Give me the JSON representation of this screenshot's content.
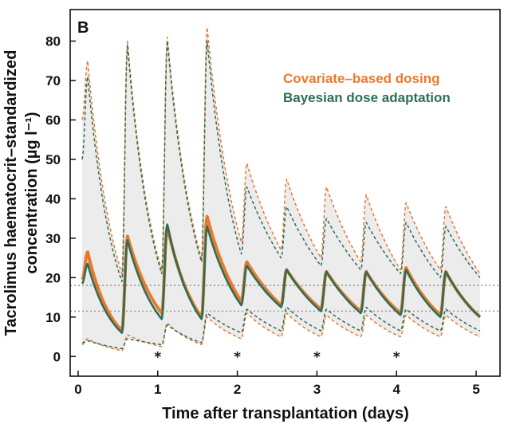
{
  "chart_data": {
    "type": "line",
    "panel_label": "B",
    "title": "",
    "xlabel": "Time after transplantation (days)",
    "ylabel_line1": "Tacrolimus haematocrit–standardized",
    "ylabel_line2": "concentration (µg l⁻¹)",
    "xlim": [
      -0.1,
      5.3
    ],
    "ylim": [
      -5,
      88
    ],
    "x_ticks": [
      0,
      1,
      2,
      3,
      4,
      5
    ],
    "x_tick_labels": [
      "0",
      "1",
      "2",
      "3",
      "4",
      "5"
    ],
    "y_ticks": [
      0,
      10,
      20,
      30,
      40,
      50,
      60,
      70,
      80
    ],
    "y_tick_labels": [
      "0",
      "10",
      "20",
      "30",
      "40",
      "50",
      "60",
      "70",
      "80"
    ],
    "grid": false,
    "legend": {
      "placement": "top-right",
      "entries": [
        {
          "label": "Covariate–based dosing",
          "color": "#e87a2d"
        },
        {
          "label": "Bayesian dose adaptation",
          "color": "#2d6e57"
        }
      ]
    },
    "reference_lines": [
      {
        "y": 18,
        "style": "dotted",
        "color": "#999999"
      },
      {
        "y": 11.5,
        "style": "dotted",
        "color": "#999999"
      }
    ],
    "markers": [
      {
        "x": 1,
        "y": 0,
        "label": "*"
      },
      {
        "x": 2,
        "y": 0,
        "label": "*"
      },
      {
        "x": 3,
        "y": 0,
        "label": "*"
      },
      {
        "x": 4,
        "y": 0,
        "label": "*"
      }
    ],
    "dosing_interval_days": 0.5,
    "series": [
      {
        "name": "Covariate–based dosing",
        "role": "median",
        "color": "#e87a2d",
        "style": "solid",
        "peaks": [
          26.5,
          30.5,
          33.0,
          35.5,
          24.0,
          22.0,
          21.5,
          21.5,
          22.5,
          21.5
        ],
        "troughs": [
          19.5,
          6.5,
          11.0,
          10.0,
          14.0,
          13.0,
          12.0,
          11.5,
          11.0,
          10.5,
          10.0
        ]
      },
      {
        "name": "Bayesian dose adaptation",
        "role": "median",
        "color": "#2d6e57",
        "style": "solid",
        "peaks": [
          23.5,
          29.5,
          33.5,
          33.0,
          23.0,
          22.0,
          21.5,
          21.5,
          22.0,
          21.5
        ],
        "troughs": [
          18.5,
          6.0,
          9.5,
          9.5,
          13.0,
          12.5,
          11.5,
          11.0,
          10.5,
          10.0,
          10.0
        ]
      },
      {
        "name": "Covariate–based dosing",
        "role": "upper",
        "color": "#e87a2d",
        "style": "dashed",
        "peaks": [
          75.0,
          80.0,
          81.0,
          83.5,
          49.0,
          45.0,
          43.0,
          41.0,
          39.0,
          38.0
        ],
        "troughs": [
          60.0,
          21.0,
          22.0,
          25.0,
          29.0,
          27.0,
          25.0,
          24.0,
          22.0,
          22.0,
          21.0
        ]
      },
      {
        "name": "Bayesian dose adaptation",
        "role": "upper",
        "color": "#2d6e57",
        "style": "dashed",
        "peaks": [
          71.0,
          79.0,
          80.0,
          80.0,
          43.0,
          38.0,
          35.0,
          34.0,
          34.0,
          33.0
        ],
        "troughs": [
          50.0,
          19.0,
          21.0,
          24.0,
          26.0,
          25.0,
          23.0,
          22.0,
          21.0,
          20.0,
          20.0
        ]
      },
      {
        "name": "Covariate–based dosing",
        "role": "lower",
        "color": "#e87a2d",
        "style": "dashed",
        "peaks": [
          4.5,
          5.5,
          8.5,
          10.0,
          11.0,
          11.0,
          10.5,
          10.5,
          10.5,
          10.5
        ],
        "troughs": [
          3.0,
          1.5,
          2.5,
          3.0,
          4.5,
          5.0,
          5.0,
          5.0,
          5.0,
          5.0,
          5.0
        ]
      },
      {
        "name": "Bayesian dose adaptation",
        "role": "lower",
        "color": "#2d6e57",
        "style": "dashed",
        "peaks": [
          4.0,
          4.5,
          8.0,
          11.0,
          12.0,
          12.5,
          12.0,
          12.5,
          12.0,
          12.0
        ],
        "troughs": [
          3.5,
          2.0,
          3.0,
          3.5,
          6.0,
          6.5,
          6.5,
          6.5,
          6.5,
          6.5,
          6.5
        ]
      }
    ]
  }
}
